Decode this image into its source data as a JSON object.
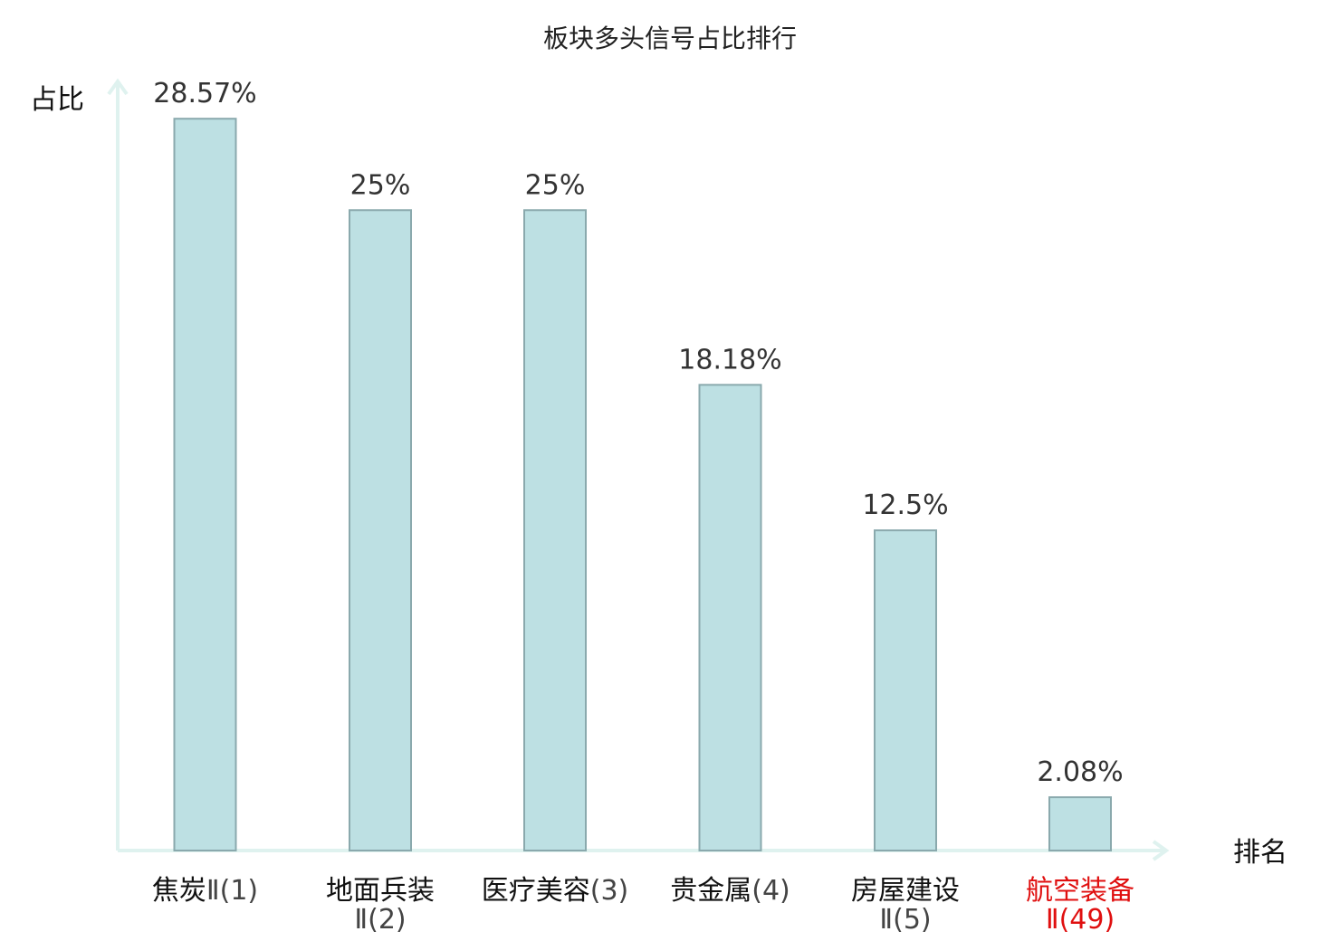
{
  "chart_data": {
    "type": "bar",
    "title": "板块多头信号占比排行",
    "ylabel": "占比",
    "xlabel": "排名",
    "ylim": [
      0,
      30
    ],
    "grid": false,
    "legend": "none",
    "categories": [
      {
        "name": "焦炭",
        "rank": "Ⅱ(1)"
      },
      {
        "name": "地面兵装",
        "rank": "Ⅱ(2)"
      },
      {
        "name": "医疗美容",
        "rank": "(3)"
      },
      {
        "name": "贵金属",
        "rank": "(4)"
      },
      {
        "name": "房屋建设",
        "rank": "Ⅱ(5)"
      },
      {
        "name": "航空装备",
        "rank": "Ⅱ(49)",
        "highlight": true
      }
    ],
    "values": [
      28.57,
      25,
      25,
      18.18,
      12.5,
      2.08
    ],
    "value_labels": [
      "28.57%",
      "25%",
      "25%",
      "18.18%",
      "12.5%",
      "2.08%"
    ]
  },
  "colors": {
    "bar_fill": "#bde0e3",
    "bar_stroke": "#8aa9ad",
    "axis": "#dff2ef",
    "highlight": "#e01010"
  }
}
